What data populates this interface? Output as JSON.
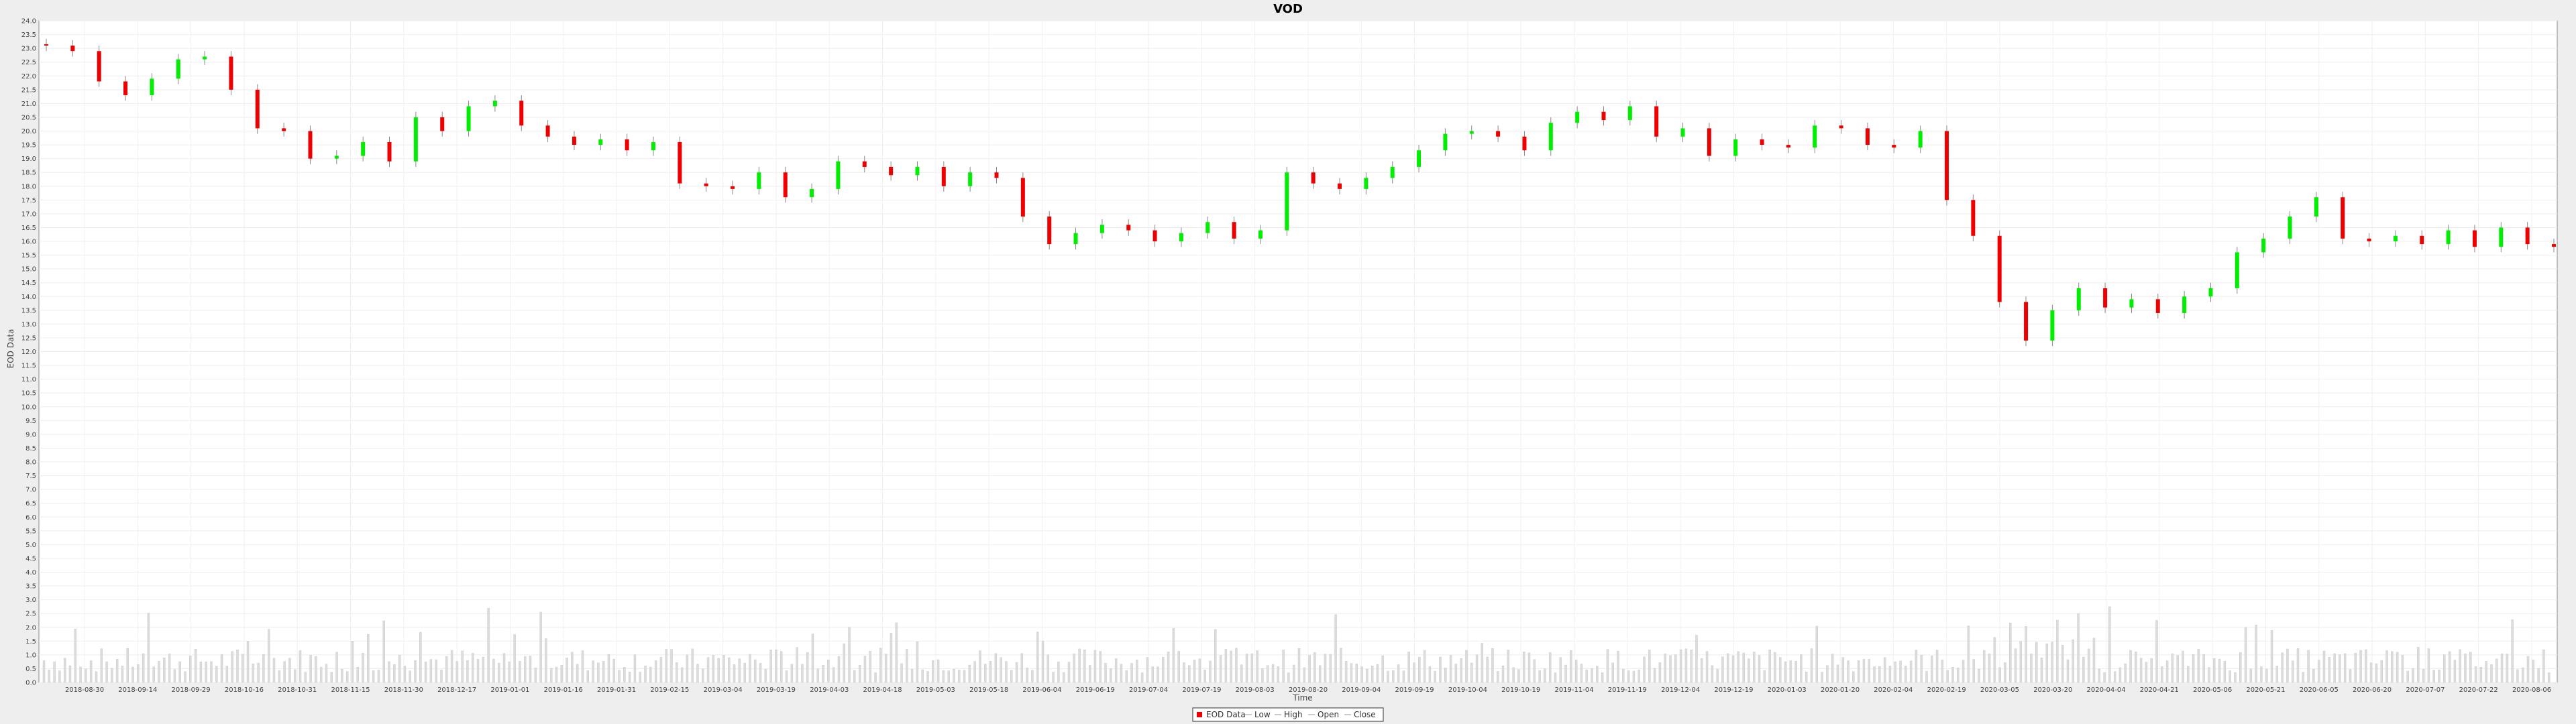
{
  "chart_data": {
    "type": "candlestick",
    "title": "VOD",
    "xlabel": "Time",
    "ylabel": "EOD Data",
    "ylim": [
      0.0,
      24.0
    ],
    "y_ticks": [
      "0.0",
      "0.5",
      "1.0",
      "1.5",
      "2.0",
      "2.5",
      "3.0",
      "3.5",
      "4.0",
      "4.5",
      "5.0",
      "5.5",
      "6.0",
      "6.5",
      "7.0",
      "7.5",
      "8.0",
      "8.5",
      "9.0",
      "9.5",
      "10.0",
      "10.5",
      "11.0",
      "11.5",
      "12.0",
      "12.5",
      "13.0",
      "13.5",
      "14.0",
      "14.5",
      "15.0",
      "15.5",
      "16.0",
      "16.5",
      "17.0",
      "17.5",
      "18.0",
      "18.5",
      "19.0",
      "19.5",
      "20.0",
      "20.5",
      "21.0",
      "21.5",
      "22.0",
      "22.5",
      "23.0",
      "23.5",
      "24.0"
    ],
    "x_ticks": [
      "2018-08-30",
      "2018-09-14",
      "2018-09-29",
      "2018-10-16",
      "2018-10-31",
      "2018-11-15",
      "2018-11-30",
      "2018-12-17",
      "2019-01-01",
      "2019-01-16",
      "2019-01-31",
      "2019-02-15",
      "2019-03-04",
      "2019-03-19",
      "2019-04-03",
      "2019-04-18",
      "2019-05-03",
      "2019-05-18",
      "2019-06-04",
      "2019-06-19",
      "2019-07-04",
      "2019-07-19",
      "2019-08-03",
      "2019-08-20",
      "2019-09-04",
      "2019-09-19",
      "2019-10-04",
      "2019-10-19",
      "2019-11-04",
      "2019-11-19",
      "2019-12-04",
      "2019-12-19",
      "2020-01-03",
      "2020-01-20",
      "2020-02-04",
      "2020-02-19",
      "2020-03-05",
      "2020-03-20",
      "2020-04-04",
      "2020-04-21",
      "2020-05-06",
      "2020-05-21",
      "2020-06-05",
      "2020-06-20",
      "2020-07-07",
      "2020-07-22",
      "2020-08-06"
    ],
    "series": [
      {
        "name": "Close",
        "values": [
          23.1,
          22.9,
          21.8,
          21.3,
          21.9,
          22.6,
          22.7,
          21.5,
          20.1,
          20.0,
          19.0,
          19.1,
          19.6,
          18.9,
          20.5,
          20.0,
          20.9,
          21.1,
          20.2,
          19.8,
          19.5,
          19.7,
          19.3,
          19.6,
          18.1,
          18.0,
          17.9,
          18.5,
          17.6,
          17.9,
          18.9,
          18.7,
          18.4,
          18.7,
          18.0,
          18.5,
          18.3,
          16.9,
          15.9,
          16.3,
          16.6,
          16.4,
          16.0,
          16.3,
          16.7,
          16.1,
          16.4,
          18.5,
          18.1,
          17.9,
          18.3,
          18.7,
          19.3,
          19.9,
          20.0,
          19.8,
          19.3,
          20.3,
          20.7,
          20.4,
          20.9,
          19.8,
          20.1,
          19.1,
          19.7,
          19.5,
          19.4,
          20.2,
          20.1,
          19.5,
          19.4,
          20.0,
          17.5,
          16.2,
          13.8,
          12.4,
          13.5,
          14.3,
          13.6,
          13.9,
          13.4,
          14.0,
          14.3,
          15.6,
          16.1,
          16.9,
          17.6,
          16.1,
          16.0,
          16.2,
          15.9,
          16.4,
          15.8,
          16.5,
          15.9,
          15.8
        ],
        "colors_note": "up candles green, down candles red, volume bars pale grey"
      }
    ],
    "volume_scale": "same axis, low values 0.0-4.0",
    "legend": [
      "EOD Data",
      "Low",
      "High",
      "Open",
      "Close"
    ],
    "legend_placement": "bottom-center",
    "grid": true,
    "colors": {
      "up": "#00ee00",
      "down": "#ee0000",
      "volume": "#d8d8d8",
      "plot_bg": "#ffffff",
      "grid": "#eeeeee",
      "page_bg": "#eeeeee"
    }
  }
}
